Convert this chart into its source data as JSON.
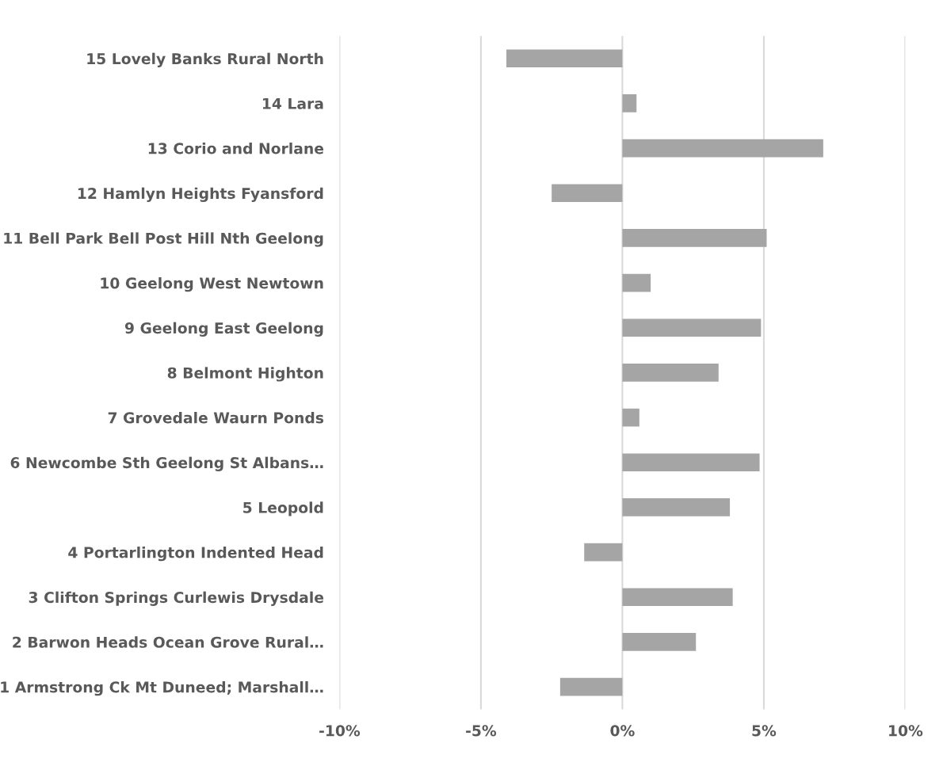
{
  "chart_data": {
    "type": "bar",
    "orientation": "horizontal",
    "categories": [
      "15 Lovely Banks Rural North",
      "14 Lara",
      "13 Corio and Norlane",
      "12 Hamlyn Heights Fyansford",
      "11 Bell Park Bell Post Hill Nth Geelong",
      "10 Geelong West Newtown",
      "9 Geelong East Geelong",
      "8 Belmont Highton",
      "7 Grovedale Waurn Ponds",
      "6 Newcombe Sth Geelong St Albans…",
      "5 Leopold",
      "4 Portarlington Indented Head",
      "3 Clifton Springs Curlewis Drysdale",
      "2 Barwon Heads Ocean Grove Rural…",
      "1 Armstrong Ck Mt Duneed; Marshall…"
    ],
    "values": [
      -4.1,
      0.5,
      7.1,
      -2.5,
      5.1,
      1.0,
      4.9,
      3.4,
      0.6,
      4.85,
      3.8,
      -1.35,
      3.9,
      2.6,
      -2.2
    ],
    "color": "#a5a5a5",
    "xlim": [
      -10,
      10
    ],
    "xticks": [
      {
        "value": -10,
        "label": "-10%"
      },
      {
        "value": -5,
        "label": "-5%"
      },
      {
        "value": 0,
        "label": "0%"
      },
      {
        "value": 5,
        "label": "5%"
      },
      {
        "value": 10,
        "label": "10%"
      }
    ],
    "grid": "x"
  }
}
